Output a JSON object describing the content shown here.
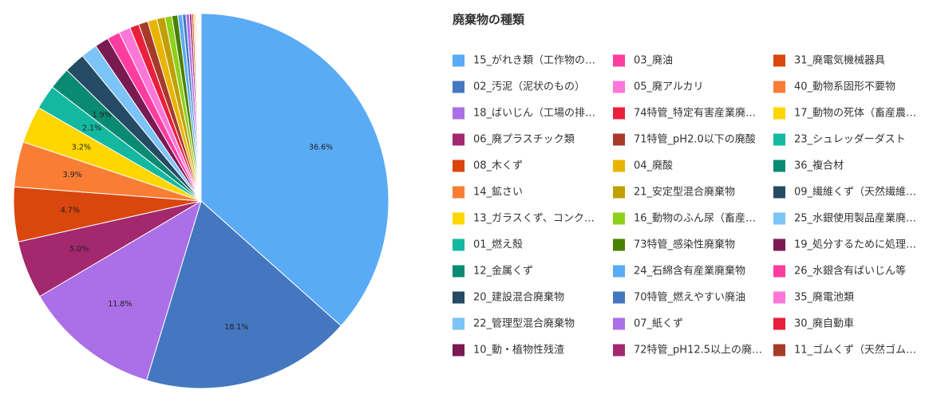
{
  "chart_data": {
    "type": "pie",
    "legend_title": "廃棄物の種類",
    "legend_position": "right",
    "categories": [
      "15_がれき類（工作物の…",
      "02_汚泥（泥状のもの）",
      "18_ばいじん（工場の排…",
      "06_廃プラスチック類",
      "08_木くず",
      "14_鉱さい",
      "13_ガラスくず、コンク…",
      "01_燃え殻",
      "12_金属くず",
      "20_建設混合廃棄物",
      "22_管理型混合廃棄物",
      "10_動・植物性残渣",
      "03_廃油",
      "05_廃アルカリ",
      "74特管_特定有害産業廃…",
      "71特管_pH2.0以下の廃酸",
      "04_廃酸",
      "21_安定型混合廃棄物",
      "16_動物のふん尿（畜産…",
      "73特管_感染性廃棄物",
      "24_石綿含有産業廃棄物",
      "70特管_燃えやすい廃油",
      "07_紙くず",
      "72特管_pH12.5以上の廃…",
      "31_廃電気機械器具",
      "40_動物系固形不要物",
      "17_動物の死体（畜産農…",
      "23_シュレッダーダスト",
      "36_複合材",
      "09_繊維くず（天然繊維…",
      "25_水銀使用製品産業廃…",
      "19_処分するために処理…",
      "26_水銀含有ばいじん等",
      "35_廃電池類",
      "30_廃自動車",
      "11_ゴムくず（天然ゴム…"
    ],
    "values": [
      36.6,
      18.1,
      11.8,
      5.0,
      4.7,
      3.9,
      3.2,
      2.1,
      1.9,
      1.8,
      1.4,
      1.2,
      1.1,
      1.0,
      0.8,
      0.8,
      0.8,
      0.7,
      0.6,
      0.5,
      0.4,
      0.3,
      0.3,
      0.2,
      0.15,
      0.1,
      0.1,
      0.08,
      0.07,
      0.06,
      0.06,
      0.05,
      0.05,
      0.04,
      0.03,
      0.01
    ],
    "value_labels": [
      "36.6%",
      "18.1%",
      "11.8%",
      "5.0%",
      "4.7%",
      "3.9%",
      "3.2%",
      "2.1%",
      "1.9%",
      null,
      null,
      null,
      null,
      null,
      null,
      null,
      null,
      null,
      null,
      null,
      null,
      null,
      null,
      null,
      null,
      null,
      null,
      null,
      null,
      null,
      null,
      null,
      null,
      null,
      null,
      null
    ],
    "colors": [
      "#5aabf5",
      "#4477bf",
      "#ab6fe8",
      "#a3286e",
      "#d9470e",
      "#f97d35",
      "#ffd600",
      "#14b8a0",
      "#0a8a73",
      "#254a63",
      "#7cc3f7",
      "#7a1a53",
      "#ff3da0",
      "#ff77d9",
      "#e8203c",
      "#a83a2a",
      "#e8b400",
      "#c0a000",
      "#8ed01a",
      "#4a8000",
      "#5aabf5",
      "#4477bf",
      "#ab6fe8",
      "#a3286e",
      "#d9470e",
      "#f97d35",
      "#ffd600",
      "#14b8a0",
      "#0a8a73",
      "#254a63",
      "#7cc3f7",
      "#7a1a53",
      "#ff3da0",
      "#ff77d9",
      "#e8203c",
      "#a83a2a"
    ]
  }
}
